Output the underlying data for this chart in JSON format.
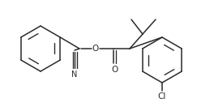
{
  "bg_color": "#ffffff",
  "line_color": "#2a2a2a",
  "line_width": 1.1,
  "font_size": 7.0,
  "figsize": [
    2.64,
    1.32
  ],
  "dpi": 100,
  "xlim": [
    0,
    264
  ],
  "ylim": [
    0,
    132
  ]
}
